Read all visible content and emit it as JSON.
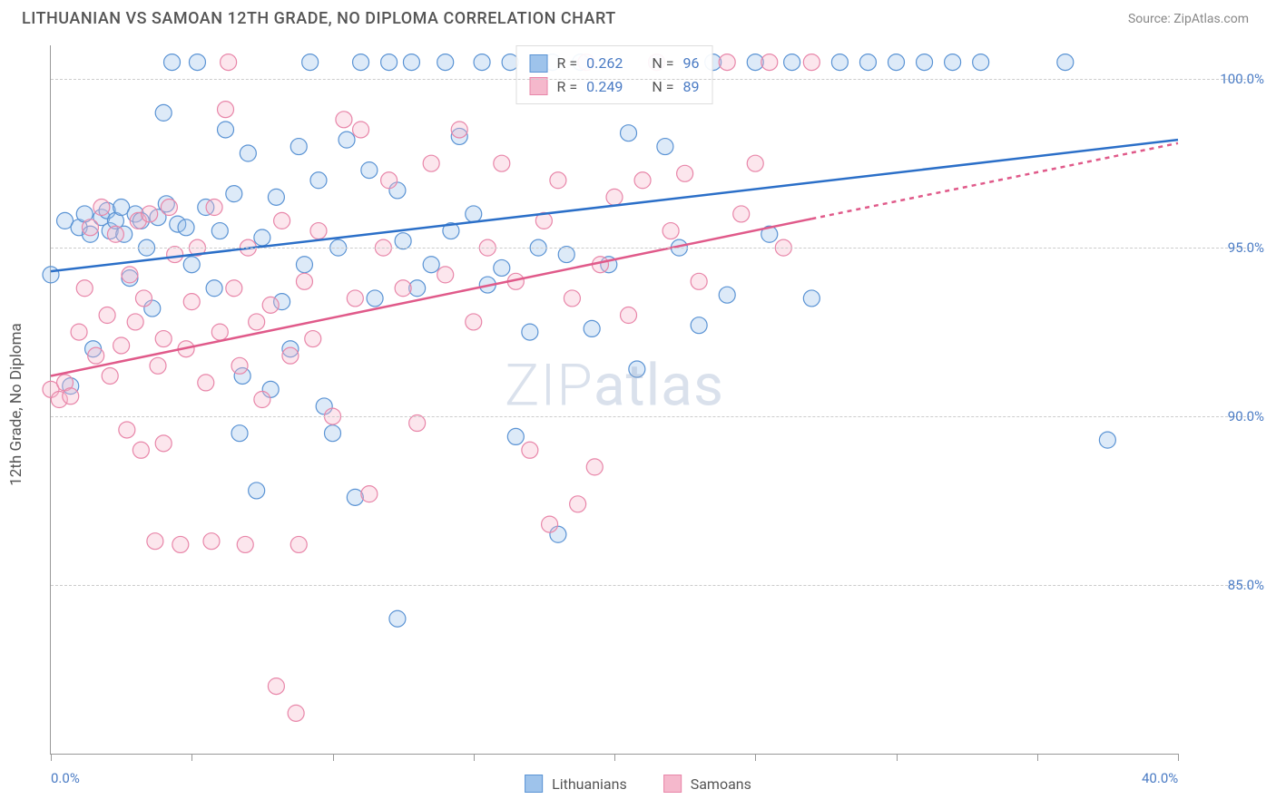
{
  "title": "LITHUANIAN VS SAMOAN 12TH GRADE, NO DIPLOMA CORRELATION CHART",
  "source": "Source: ZipAtlas.com",
  "y_axis_label": "12th Grade, No Diploma",
  "watermark_a": "ZIP",
  "watermark_b": "atlas",
  "chart": {
    "type": "scatter",
    "xlim": [
      0,
      40
    ],
    "ylim": [
      80,
      101
    ],
    "x_ticks": [
      0,
      5,
      10,
      15,
      20,
      25,
      30,
      35,
      40
    ],
    "x_tick_labels": {
      "0": "0.0%",
      "40": "40.0%"
    },
    "y_ticks": [
      85,
      90,
      95,
      100
    ],
    "y_tick_labels": {
      "85": "85.0%",
      "90": "90.0%",
      "95": "95.0%",
      "100": "100.0%"
    },
    "grid_color": "#cccccc",
    "background_color": "#ffffff",
    "marker_radius": 9,
    "marker_fill_opacity": 0.35,
    "marker_stroke_width": 1.2,
    "trend_line_width": 2.5,
    "series": [
      {
        "name": "Lithuanians",
        "color_fill": "#9ec3eb",
        "color_stroke": "#5a93d4",
        "trend_color": "#2b6fc8",
        "trend": {
          "x1": 0,
          "y1": 94.3,
          "x2": 40,
          "y2": 98.2,
          "dash_from_x": 40
        },
        "R_label": "R =",
        "R": "0.262",
        "N_label": "N =",
        "N": "96",
        "points": [
          [
            0,
            94.2
          ],
          [
            0.5,
            95.8
          ],
          [
            0.7,
            90.9
          ],
          [
            1,
            95.6
          ],
          [
            1.2,
            96.0
          ],
          [
            1.4,
            95.4
          ],
          [
            1.5,
            92.0
          ],
          [
            1.8,
            95.9
          ],
          [
            2,
            96.1
          ],
          [
            2.1,
            95.5
          ],
          [
            2.3,
            95.8
          ],
          [
            2.5,
            96.2
          ],
          [
            2.6,
            95.4
          ],
          [
            2.8,
            94.1
          ],
          [
            3,
            96.0
          ],
          [
            3.2,
            95.8
          ],
          [
            3.4,
            95.0
          ],
          [
            3.6,
            93.2
          ],
          [
            3.8,
            95.9
          ],
          [
            4,
            99.0
          ],
          [
            4.1,
            96.3
          ],
          [
            4.3,
            100.5
          ],
          [
            4.5,
            95.7
          ],
          [
            4.8,
            95.6
          ],
          [
            5,
            94.5
          ],
          [
            5.2,
            100.5
          ],
          [
            5.5,
            96.2
          ],
          [
            5.8,
            93.8
          ],
          [
            6,
            95.5
          ],
          [
            6.2,
            98.5
          ],
          [
            6.5,
            96.6
          ],
          [
            6.7,
            89.5
          ],
          [
            6.8,
            91.2
          ],
          [
            7,
            97.8
          ],
          [
            7.3,
            87.8
          ],
          [
            7.5,
            95.3
          ],
          [
            7.8,
            90.8
          ],
          [
            8,
            96.5
          ],
          [
            8.2,
            93.4
          ],
          [
            8.5,
            92.0
          ],
          [
            8.8,
            98.0
          ],
          [
            9,
            94.5
          ],
          [
            9.2,
            100.5
          ],
          [
            9.5,
            97.0
          ],
          [
            9.7,
            90.3
          ],
          [
            10,
            89.5
          ],
          [
            10.2,
            95.0
          ],
          [
            10.5,
            98.2
          ],
          [
            10.8,
            87.6
          ],
          [
            11,
            100.5
          ],
          [
            11.3,
            97.3
          ],
          [
            11.5,
            93.5
          ],
          [
            12,
            100.5
          ],
          [
            12.3,
            96.7
          ],
          [
            12.5,
            95.2
          ],
          [
            12.8,
            100.5
          ],
          [
            13,
            93.8
          ],
          [
            13.5,
            94.5
          ],
          [
            14,
            100.5
          ],
          [
            14.2,
            95.5
          ],
          [
            14.5,
            98.3
          ],
          [
            15,
            96.0
          ],
          [
            15.3,
            100.5
          ],
          [
            15.5,
            93.9
          ],
          [
            16,
            94.4
          ],
          [
            16.3,
            100.5
          ],
          [
            16.5,
            89.4
          ],
          [
            17,
            92.5
          ],
          [
            17.3,
            95.0
          ],
          [
            17.8,
            100.5
          ],
          [
            18,
            86.5
          ],
          [
            18.3,
            94.8
          ],
          [
            18.8,
            100.5
          ],
          [
            19.2,
            92.6
          ],
          [
            19.8,
            94.5
          ],
          [
            20.5,
            98.4
          ],
          [
            20.8,
            91.4
          ],
          [
            21.5,
            100.5
          ],
          [
            21.8,
            98.0
          ],
          [
            22.3,
            95.0
          ],
          [
            23,
            92.7
          ],
          [
            23.5,
            100.5
          ],
          [
            24,
            93.6
          ],
          [
            25,
            100.5
          ],
          [
            25.5,
            95.4
          ],
          [
            26.3,
            100.5
          ],
          [
            27,
            93.5
          ],
          [
            28,
            100.5
          ],
          [
            29,
            100.5
          ],
          [
            30,
            100.5
          ],
          [
            31,
            100.5
          ],
          [
            32,
            100.5
          ],
          [
            33,
            100.5
          ],
          [
            36,
            100.5
          ],
          [
            37.5,
            89.3
          ],
          [
            12.3,
            84.0
          ]
        ]
      },
      {
        "name": "Samoans",
        "color_fill": "#f5b8cc",
        "color_stroke": "#e886a9",
        "trend_color": "#e05a8a",
        "trend": {
          "x1": 0,
          "y1": 91.2,
          "x2": 40,
          "y2": 98.1,
          "dash_from_x": 27
        },
        "R_label": "R =",
        "R": "0.249",
        "N_label": "N =",
        "N": "89",
        "points": [
          [
            0,
            90.8
          ],
          [
            0.3,
            90.5
          ],
          [
            0.5,
            91.0
          ],
          [
            0.7,
            90.6
          ],
          [
            1,
            92.5
          ],
          [
            1.2,
            93.8
          ],
          [
            1.4,
            95.6
          ],
          [
            1.6,
            91.8
          ],
          [
            1.8,
            96.2
          ],
          [
            2,
            93.0
          ],
          [
            2.1,
            91.2
          ],
          [
            2.3,
            95.4
          ],
          [
            2.5,
            92.1
          ],
          [
            2.7,
            89.6
          ],
          [
            2.8,
            94.2
          ],
          [
            3,
            92.8
          ],
          [
            3.1,
            95.8
          ],
          [
            3.3,
            93.5
          ],
          [
            3.5,
            96.0
          ],
          [
            3.7,
            86.3
          ],
          [
            3.8,
            91.5
          ],
          [
            4,
            92.3
          ],
          [
            4.2,
            96.2
          ],
          [
            4.4,
            94.8
          ],
          [
            4.6,
            86.2
          ],
          [
            4.8,
            92.0
          ],
          [
            5,
            93.4
          ],
          [
            5.2,
            95.0
          ],
          [
            5.5,
            91.0
          ],
          [
            5.7,
            86.3
          ],
          [
            5.8,
            96.2
          ],
          [
            6,
            92.5
          ],
          [
            6.2,
            99.1
          ],
          [
            6.5,
            93.8
          ],
          [
            6.7,
            91.5
          ],
          [
            6.9,
            86.2
          ],
          [
            7,
            95.0
          ],
          [
            7.3,
            92.8
          ],
          [
            7.5,
            90.5
          ],
          [
            7.8,
            93.3
          ],
          [
            8,
            82.0
          ],
          [
            8.2,
            95.8
          ],
          [
            8.5,
            91.8
          ],
          [
            8.7,
            81.2
          ],
          [
            8.8,
            86.2
          ],
          [
            9,
            94.0
          ],
          [
            9.3,
            92.3
          ],
          [
            9.5,
            95.5
          ],
          [
            10,
            90.0
          ],
          [
            10.4,
            98.8
          ],
          [
            10.8,
            93.5
          ],
          [
            11,
            98.5
          ],
          [
            11.3,
            87.7
          ],
          [
            11.8,
            95.0
          ],
          [
            12,
            97.0
          ],
          [
            12.5,
            93.8
          ],
          [
            13,
            89.8
          ],
          [
            13.5,
            97.5
          ],
          [
            14,
            94.2
          ],
          [
            14.5,
            98.5
          ],
          [
            15,
            92.8
          ],
          [
            15.5,
            95.0
          ],
          [
            16,
            97.5
          ],
          [
            16.5,
            94.0
          ],
          [
            17,
            89.0
          ],
          [
            17.5,
            95.8
          ],
          [
            17.7,
            86.8
          ],
          [
            18,
            97.0
          ],
          [
            18.5,
            93.5
          ],
          [
            18.7,
            87.4
          ],
          [
            19,
            100.5
          ],
          [
            19.3,
            88.5
          ],
          [
            19.5,
            94.5
          ],
          [
            20,
            96.5
          ],
          [
            20.5,
            93.0
          ],
          [
            21,
            97.0
          ],
          [
            21.5,
            100.5
          ],
          [
            22,
            95.5
          ],
          [
            22.5,
            97.2
          ],
          [
            23,
            94.0
          ],
          [
            24,
            100.5
          ],
          [
            24.5,
            96.0
          ],
          [
            25,
            97.5
          ],
          [
            25.5,
            100.5
          ],
          [
            26,
            95.0
          ],
          [
            27,
            100.5
          ],
          [
            6.3,
            100.5
          ],
          [
            3.2,
            89.0
          ],
          [
            4.0,
            89.2
          ]
        ]
      }
    ]
  },
  "legend_bottom": [
    {
      "label": "Lithuanians",
      "fill": "#9ec3eb",
      "stroke": "#5a93d4"
    },
    {
      "label": "Samoans",
      "fill": "#f5b8cc",
      "stroke": "#e886a9"
    }
  ]
}
